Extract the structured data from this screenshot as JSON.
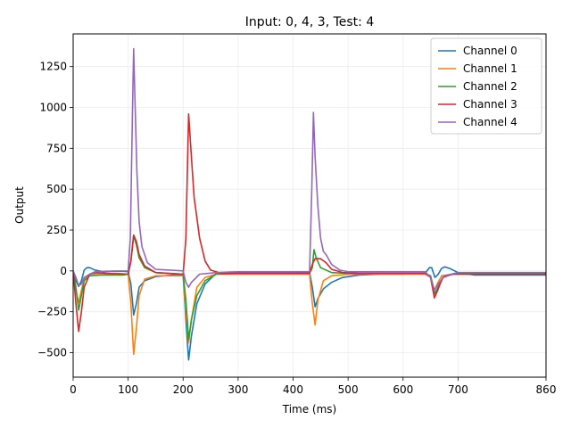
{
  "chart_data": {
    "type": "line",
    "title": "Input: 0, 4, 3, Test: 4",
    "xlabel": "Time (ms)",
    "ylabel": "Output",
    "xlim": [
      0,
      860
    ],
    "ylim": [
      -650,
      1450
    ],
    "xticks": [
      0,
      100,
      200,
      300,
      400,
      500,
      600,
      700,
      860
    ],
    "yticks": [
      -500,
      -250,
      0,
      250,
      500,
      750,
      1000,
      1250
    ],
    "grid": true,
    "legend_position": "top-right",
    "series": [
      {
        "name": "Channel 0",
        "color": "#1f77b4",
        "points": [
          [
            0,
            0
          ],
          [
            5,
            -60
          ],
          [
            10,
            -95
          ],
          [
            15,
            -60
          ],
          [
            20,
            5
          ],
          [
            25,
            20
          ],
          [
            30,
            20
          ],
          [
            40,
            5
          ],
          [
            55,
            -5
          ],
          [
            70,
            -2
          ],
          [
            90,
            -2
          ],
          [
            100,
            -5
          ],
          [
            105,
            -80
          ],
          [
            110,
            -270
          ],
          [
            115,
            -200
          ],
          [
            120,
            -100
          ],
          [
            130,
            -60
          ],
          [
            150,
            -35
          ],
          [
            180,
            -25
          ],
          [
            200,
            -25
          ],
          [
            205,
            -300
          ],
          [
            210,
            -545
          ],
          [
            215,
            -400
          ],
          [
            225,
            -200
          ],
          [
            240,
            -80
          ],
          [
            260,
            -15
          ],
          [
            300,
            -10
          ],
          [
            350,
            -10
          ],
          [
            430,
            -10
          ],
          [
            435,
            -100
          ],
          [
            440,
            -220
          ],
          [
            445,
            -170
          ],
          [
            455,
            -110
          ],
          [
            470,
            -70
          ],
          [
            490,
            -40
          ],
          [
            520,
            -25
          ],
          [
            560,
            -20
          ],
          [
            600,
            -20
          ],
          [
            640,
            -15
          ],
          [
            648,
            20
          ],
          [
            652,
            20
          ],
          [
            658,
            -40
          ],
          [
            664,
            -20
          ],
          [
            670,
            15
          ],
          [
            676,
            25
          ],
          [
            685,
            15
          ],
          [
            700,
            -10
          ],
          [
            730,
            -25
          ],
          [
            800,
            -25
          ],
          [
            860,
            -25
          ]
        ]
      },
      {
        "name": "Channel 1",
        "color": "#ff7f0e",
        "points": [
          [
            0,
            0
          ],
          [
            5,
            -120
          ],
          [
            10,
            -195
          ],
          [
            15,
            -120
          ],
          [
            20,
            -50
          ],
          [
            30,
            -20
          ],
          [
            50,
            -15
          ],
          [
            80,
            -15
          ],
          [
            100,
            -20
          ],
          [
            105,
            -200
          ],
          [
            110,
            -510
          ],
          [
            115,
            -350
          ],
          [
            120,
            -150
          ],
          [
            130,
            -50
          ],
          [
            150,
            -30
          ],
          [
            200,
            -30
          ],
          [
            205,
            -250
          ],
          [
            210,
            -440
          ],
          [
            215,
            -300
          ],
          [
            225,
            -100
          ],
          [
            240,
            -40
          ],
          [
            260,
            -20
          ],
          [
            300,
            -20
          ],
          [
            430,
            -20
          ],
          [
            435,
            -200
          ],
          [
            440,
            -330
          ],
          [
            445,
            -180
          ],
          [
            455,
            -60
          ],
          [
            470,
            -30
          ],
          [
            500,
            -20
          ],
          [
            640,
            -20
          ],
          [
            650,
            -30
          ],
          [
            657,
            -120
          ],
          [
            662,
            -80
          ],
          [
            670,
            -30
          ],
          [
            690,
            -20
          ],
          [
            860,
            -20
          ]
        ]
      },
      {
        "name": "Channel 2",
        "color": "#2ca02c",
        "points": [
          [
            0,
            0
          ],
          [
            5,
            -100
          ],
          [
            10,
            -240
          ],
          [
            15,
            -150
          ],
          [
            20,
            -60
          ],
          [
            30,
            -30
          ],
          [
            50,
            -25
          ],
          [
            90,
            -25
          ],
          [
            100,
            -20
          ],
          [
            105,
            60
          ],
          [
            110,
            215
          ],
          [
            115,
            160
          ],
          [
            120,
            80
          ],
          [
            130,
            20
          ],
          [
            150,
            -10
          ],
          [
            200,
            -20
          ],
          [
            205,
            -180
          ],
          [
            210,
            -420
          ],
          [
            215,
            -300
          ],
          [
            225,
            -150
          ],
          [
            240,
            -60
          ],
          [
            260,
            -20
          ],
          [
            300,
            -15
          ],
          [
            430,
            -15
          ],
          [
            435,
            20
          ],
          [
            438,
            130
          ],
          [
            442,
            80
          ],
          [
            450,
            20
          ],
          [
            470,
            -10
          ],
          [
            500,
            -15
          ],
          [
            640,
            -15
          ],
          [
            650,
            -30
          ],
          [
            658,
            -140
          ],
          [
            665,
            -90
          ],
          [
            675,
            -30
          ],
          [
            700,
            -15
          ],
          [
            860,
            -15
          ]
        ]
      },
      {
        "name": "Channel 3",
        "color": "#d62728",
        "points": [
          [
            0,
            0
          ],
          [
            5,
            -200
          ],
          [
            10,
            -370
          ],
          [
            15,
            -250
          ],
          [
            20,
            -100
          ],
          [
            30,
            -20
          ],
          [
            40,
            -10
          ],
          [
            60,
            -15
          ],
          [
            100,
            -20
          ],
          [
            105,
            60
          ],
          [
            110,
            220
          ],
          [
            115,
            180
          ],
          [
            120,
            100
          ],
          [
            130,
            30
          ],
          [
            150,
            -10
          ],
          [
            200,
            -20
          ],
          [
            205,
            200
          ],
          [
            210,
            960
          ],
          [
            215,
            700
          ],
          [
            220,
            450
          ],
          [
            230,
            200
          ],
          [
            240,
            60
          ],
          [
            250,
            5
          ],
          [
            270,
            -15
          ],
          [
            300,
            -15
          ],
          [
            430,
            -15
          ],
          [
            435,
            40
          ],
          [
            440,
            75
          ],
          [
            450,
            75
          ],
          [
            460,
            50
          ],
          [
            470,
            10
          ],
          [
            490,
            -10
          ],
          [
            520,
            -15
          ],
          [
            640,
            -15
          ],
          [
            650,
            -40
          ],
          [
            657,
            -165
          ],
          [
            664,
            -110
          ],
          [
            672,
            -40
          ],
          [
            690,
            -20
          ],
          [
            860,
            -20
          ]
        ]
      },
      {
        "name": "Channel 4",
        "color": "#9467bd",
        "points": [
          [
            0,
            0
          ],
          [
            5,
            -40
          ],
          [
            10,
            -90
          ],
          [
            15,
            -80
          ],
          [
            20,
            -40
          ],
          [
            30,
            -20
          ],
          [
            40,
            -5
          ],
          [
            60,
            -2
          ],
          [
            100,
            0
          ],
          [
            104,
            200
          ],
          [
            108,
            1000
          ],
          [
            110,
            1360
          ],
          [
            112,
            1100
          ],
          [
            116,
            600
          ],
          [
            120,
            300
          ],
          [
            125,
            150
          ],
          [
            135,
            50
          ],
          [
            150,
            10
          ],
          [
            200,
            0
          ],
          [
            205,
            -70
          ],
          [
            210,
            -100
          ],
          [
            215,
            -70
          ],
          [
            230,
            -20
          ],
          [
            260,
            -10
          ],
          [
            300,
            -5
          ],
          [
            430,
            -5
          ],
          [
            434,
            500
          ],
          [
            437,
            970
          ],
          [
            440,
            700
          ],
          [
            445,
            400
          ],
          [
            450,
            200
          ],
          [
            455,
            120
          ],
          [
            460,
            100
          ],
          [
            470,
            40
          ],
          [
            485,
            5
          ],
          [
            500,
            -5
          ],
          [
            640,
            -5
          ],
          [
            650,
            -40
          ],
          [
            657,
            -120
          ],
          [
            664,
            -80
          ],
          [
            675,
            -30
          ],
          [
            700,
            -10
          ],
          [
            860,
            -10
          ]
        ]
      }
    ]
  }
}
